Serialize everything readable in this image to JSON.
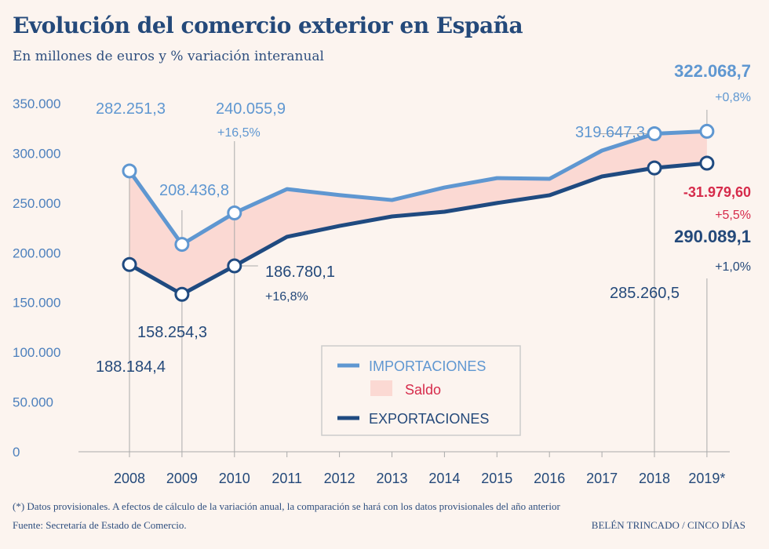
{
  "chart_data": {
    "type": "line",
    "title": "Evolución del comercio exterior en España",
    "subtitle": "En millones de euros y % variación interanual",
    "categories": [
      "2008",
      "2009",
      "2010",
      "2011",
      "2012",
      "2013",
      "2014",
      "2015",
      "2016",
      "2017",
      "2018",
      "2019*"
    ],
    "ylim": [
      0,
      350000
    ],
    "yticks": [
      "0",
      "50.000",
      "100.000",
      "150.000",
      "200.000",
      "250.000",
      "300.000",
      "350.000"
    ],
    "series": [
      {
        "name": "IMPORTACIONES",
        "color": "#5f97d1",
        "values": [
          282251.3,
          208436.8,
          240055.9,
          264000,
          258000,
          253000,
          265600,
          275000,
          274300,
          302700,
          319647.3,
          322068.7
        ]
      },
      {
        "name": "EXPORTACIONES",
        "color": "#1f4a80",
        "values": [
          188184.4,
          158254.3,
          186780.1,
          216000,
          227000,
          236500,
          241200,
          250000,
          257800,
          276700,
          285260.5,
          290089.1
        ]
      }
    ],
    "saldo": {
      "name": "Saldo",
      "color": "#fbd9d3"
    },
    "annotations": {
      "imp_2008": "282.251,3",
      "imp_2009": "208.436,8",
      "imp_2010": "240.055,9",
      "imp_2010_pct": "+16,5%",
      "imp_2018": "319.647,3",
      "imp_2019": "322.068,7",
      "imp_2019_pct": "+0,8%",
      "saldo_2019": "-31.979,60",
      "saldo_2019_pct": "+5,5%",
      "exp_2019": "290.089,1",
      "exp_2019_pct": "+1,0%",
      "exp_2018": "285.260,5",
      "exp_2010": "186.780,1",
      "exp_2010_pct": "+16,8%",
      "exp_2009": "158.254,3",
      "exp_2008": "188.184,4"
    },
    "legend_placement": "center-bottom",
    "grid": false
  },
  "footnote": "(*)  Datos provisionales. A efectos de cálculo de la variación anual, la comparación se hará con los datos provisionales del año anterior",
  "source": "Fuente: Secretaría de Estado de Comercio.",
  "credit": "BELÉN TRINCADO / CINCO DÍAS"
}
